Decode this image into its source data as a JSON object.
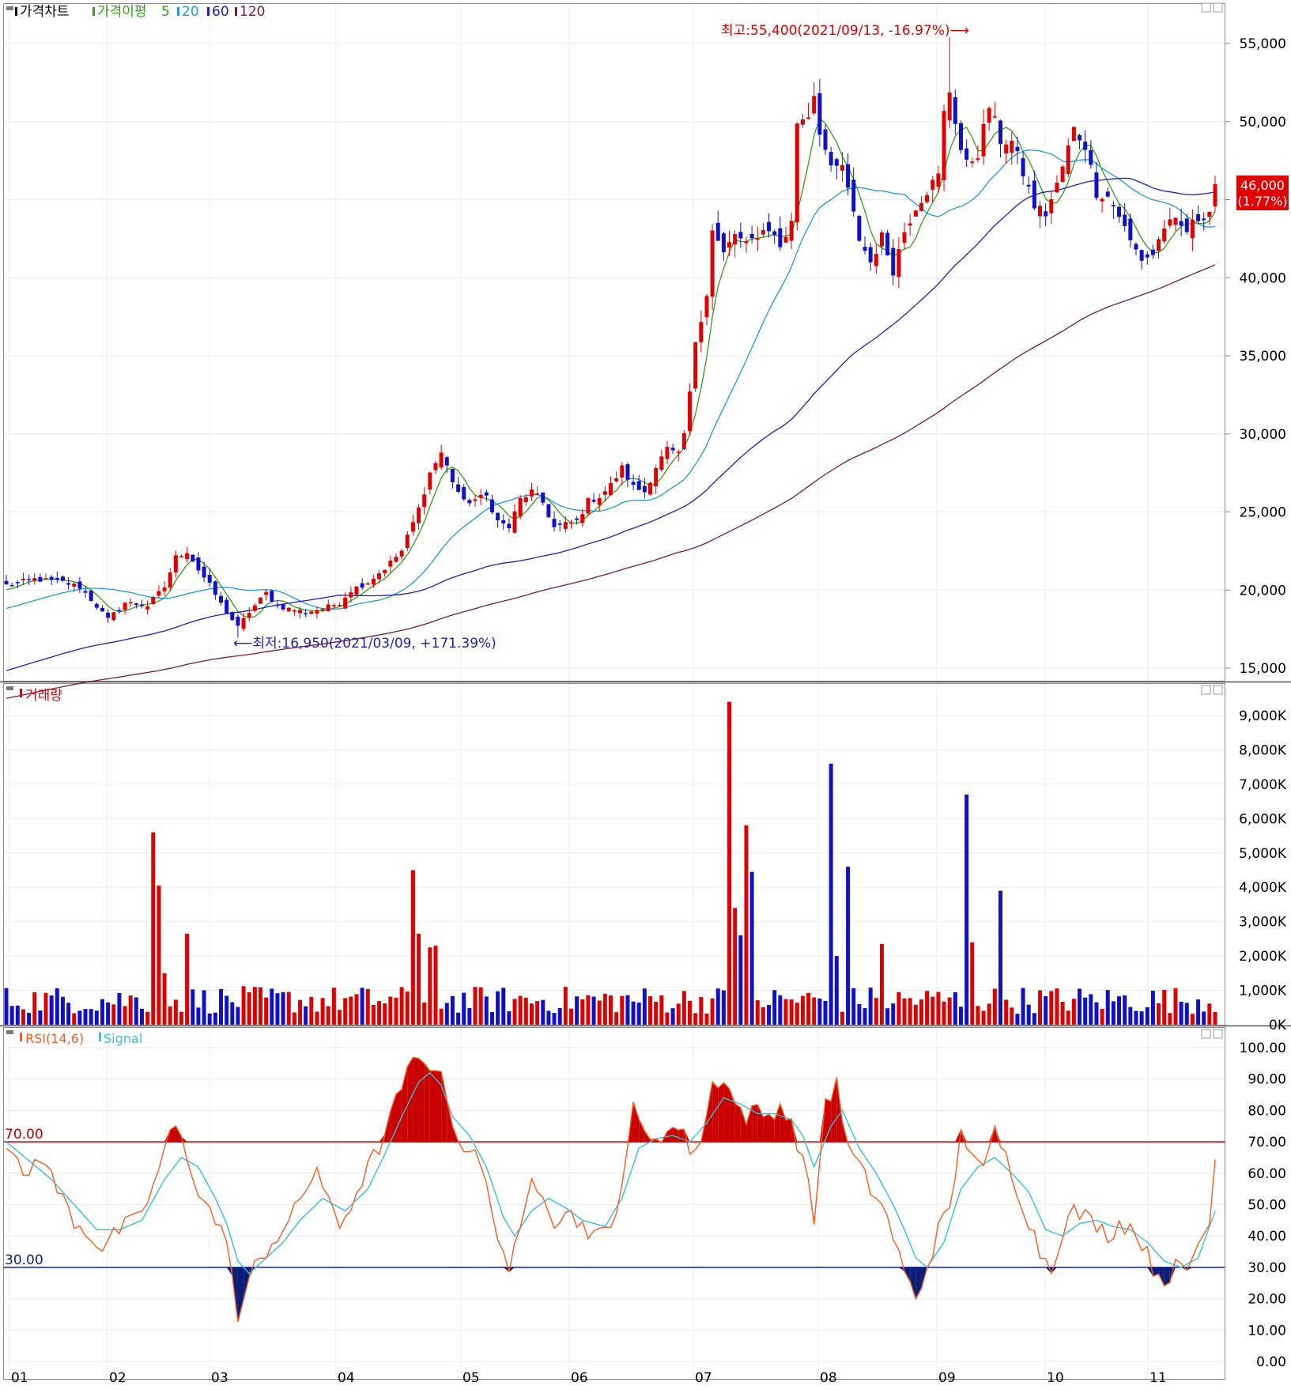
{
  "colors": {
    "up": "#e00000",
    "down": "#1010c8",
    "ma5": "#3a9a1a",
    "ma20": "#1e9ad6",
    "ma60": "#1e1ec0",
    "ma120": "#7a1a3a",
    "rsi": "#ff5a1e",
    "signal": "#36c0d8",
    "grid": "#e6e6e6",
    "frame": "#8a8a8a",
    "high_fill": "#c80000",
    "low_fill": "#0a1e78"
  },
  "price_panel": {
    "legend": {
      "title": "가격차트",
      "ma_label": "가격이평",
      "ma5": "5",
      "ma20": "20",
      "ma60": "60",
      "ma120": "120"
    },
    "high_annotation": "최고:55,400(2021/09/13, -16.97%)⟶",
    "low_annotation": "⟵최저:16,950(2021/03/09, +171.39%)",
    "last_price": "46,000",
    "last_change": "(1.77%)",
    "y_ticks": [
      "55,000",
      "50,000",
      "45,000",
      "40,000",
      "35,000",
      "30,000",
      "25,000",
      "20,000",
      "15,000"
    ]
  },
  "volume_panel": {
    "legend": "거래량",
    "y_ticks": [
      "9,000K",
      "8,000K",
      "7,000K",
      "6,000K",
      "5,000K",
      "4,000K",
      "3,000K",
      "2,000K",
      "1,000K",
      "0K"
    ]
  },
  "rsi_panel": {
    "legend_rsi": "RSI(14,6)",
    "legend_signal": "Signal",
    "upper_label": "70.00",
    "lower_label": "30.00",
    "y_ticks": [
      "100.00",
      "90.00",
      "80.00",
      "70.00",
      "60.00",
      "50.00",
      "40.00",
      "30.00",
      "20.00",
      "10.00",
      "0.00"
    ]
  },
  "x_axis": [
    "01",
    "02",
    "03",
    "04",
    "05",
    "06",
    "07",
    "08",
    "09",
    "10",
    "11"
  ],
  "chart_data": [
    {
      "type": "candlestick",
      "title": "가격차트",
      "ylim": [
        15000,
        56500
      ],
      "months": [
        "01",
        "02",
        "03",
        "04",
        "05",
        "06",
        "07",
        "08",
        "09",
        "10",
        "11"
      ],
      "close_anchors": [
        [
          0,
          20300
        ],
        [
          5,
          20700
        ],
        [
          10,
          20500
        ],
        [
          13,
          20200
        ],
        [
          15,
          19400
        ],
        [
          18,
          18100
        ],
        [
          21,
          19200
        ],
        [
          25,
          19000
        ],
        [
          28,
          20200
        ],
        [
          30,
          22100
        ],
        [
          32,
          22500
        ],
        [
          34,
          21300
        ],
        [
          36,
          20300
        ],
        [
          38,
          19100
        ],
        [
          40,
          18100
        ],
        [
          41,
          17600
        ],
        [
          43,
          18600
        ],
        [
          46,
          19800
        ],
        [
          48,
          19000
        ],
        [
          50,
          18800
        ],
        [
          53,
          18600
        ],
        [
          56,
          18800
        ],
        [
          59,
          19200
        ],
        [
          61,
          20000
        ],
        [
          64,
          20500
        ],
        [
          67,
          21400
        ],
        [
          70,
          22500
        ],
        [
          73,
          25200
        ],
        [
          75,
          27500
        ],
        [
          77,
          28800
        ],
        [
          79,
          27000
        ],
        [
          81,
          25600
        ],
        [
          83,
          25800
        ],
        [
          85,
          26000
        ],
        [
          87,
          24400
        ],
        [
          89,
          24000
        ],
        [
          91,
          25800
        ],
        [
          93,
          26300
        ],
        [
          95,
          25600
        ],
        [
          97,
          24000
        ],
        [
          99,
          24200
        ],
        [
          101,
          24400
        ],
        [
          103,
          25700
        ],
        [
          105,
          26000
        ],
        [
          107,
          26700
        ],
        [
          109,
          27800
        ],
        [
          111,
          26600
        ],
        [
          113,
          26300
        ],
        [
          115,
          27900
        ],
        [
          117,
          29000
        ],
        [
          119,
          28600
        ],
        [
          120,
          30000
        ],
        [
          121,
          32500
        ],
        [
          122,
          36000
        ],
        [
          124,
          39000
        ],
        [
          125,
          43000
        ],
        [
          127,
          41500
        ],
        [
          129,
          42800
        ],
        [
          131,
          42000
        ],
        [
          133,
          42800
        ],
        [
          135,
          43200
        ],
        [
          137,
          42000
        ],
        [
          139,
          43500
        ],
        [
          140,
          50000
        ],
        [
          142,
          50500
        ],
        [
          143,
          51800
        ],
        [
          144,
          49500
        ],
        [
          146,
          46800
        ],
        [
          148,
          47200
        ],
        [
          149,
          45500
        ],
        [
          151,
          42500
        ],
        [
          153,
          41000
        ],
        [
          155,
          42600
        ],
        [
          157,
          40500
        ],
        [
          159,
          43000
        ],
        [
          161,
          44600
        ],
        [
          163,
          45600
        ],
        [
          165,
          46500
        ],
        [
          166,
          50500
        ],
        [
          167,
          52000
        ],
        [
          169,
          48200
        ],
        [
          170,
          47200
        ],
        [
          172,
          48000
        ],
        [
          174,
          51000
        ],
        [
          176,
          48800
        ],
        [
          178,
          48700
        ],
        [
          180,
          46700
        ],
        [
          182,
          44600
        ],
        [
          184,
          44100
        ],
        [
          186,
          45900
        ],
        [
          188,
          48300
        ],
        [
          189,
          49500
        ],
        [
          191,
          48500
        ],
        [
          193,
          45500
        ],
        [
          195,
          45200
        ],
        [
          197,
          44000
        ],
        [
          199,
          42300
        ],
        [
          201,
          41200
        ],
        [
          203,
          41500
        ],
        [
          205,
          43300
        ],
        [
          207,
          43500
        ],
        [
          209,
          43000
        ],
        [
          211,
          43800
        ],
        [
          213,
          44300
        ],
        [
          214,
          46000
        ]
      ],
      "highest": {
        "value": 55400,
        "date": "2021/09/13",
        "label": "최고:55,400(2021/09/13, -16.97%)"
      },
      "lowest": {
        "value": 16950,
        "date": "2021/03/09",
        "label": "최저:16,950(2021/03/09, +171.39%)"
      },
      "last": {
        "value": 46000,
        "change": "1.77%"
      },
      "series": [
        {
          "name": "5",
          "type": "line"
        },
        {
          "name": "20",
          "type": "line"
        },
        {
          "name": "60",
          "type": "line"
        },
        {
          "name": "120",
          "type": "line"
        }
      ]
    },
    {
      "type": "bar",
      "title": "거래량",
      "unit": "K",
      "ylim": [
        0,
        9500
      ],
      "spikes": [
        [
          26,
          5600
        ],
        [
          27,
          4050
        ],
        [
          28,
          1500
        ],
        [
          32,
          2650
        ],
        [
          72,
          4500
        ],
        [
          73,
          2650
        ],
        [
          75,
          2250
        ],
        [
          76,
          2300
        ],
        [
          128,
          9400
        ],
        [
          129,
          3400
        ],
        [
          130,
          2600
        ],
        [
          131,
          5800
        ],
        [
          132,
          4450
        ],
        [
          146,
          7600
        ],
        [
          147,
          2000
        ],
        [
          149,
          4600
        ],
        [
          155,
          2350
        ],
        [
          170,
          6700
        ],
        [
          171,
          2400
        ],
        [
          176,
          3900
        ]
      ],
      "baseline_k": 900
    },
    {
      "type": "line",
      "title": "RSI(14,6)",
      "ylim": [
        0,
        100
      ],
      "rsi_anchors": [
        [
          0,
          70
        ],
        [
          3,
          58
        ],
        [
          6,
          66
        ],
        [
          9,
          55
        ],
        [
          12,
          45
        ],
        [
          15,
          40
        ],
        [
          17,
          36
        ],
        [
          20,
          42
        ],
        [
          23,
          45
        ],
        [
          26,
          55
        ],
        [
          28,
          68
        ],
        [
          30,
          75
        ],
        [
          32,
          65
        ],
        [
          34,
          55
        ],
        [
          36,
          48
        ],
        [
          38,
          42
        ],
        [
          40,
          30
        ],
        [
          41,
          12
        ],
        [
          42,
          20
        ],
        [
          44,
          30
        ],
        [
          47,
          38
        ],
        [
          50,
          44
        ],
        [
          53,
          55
        ],
        [
          55,
          62
        ],
        [
          57,
          50
        ],
        [
          59,
          43
        ],
        [
          61,
          50
        ],
        [
          63,
          58
        ],
        [
          65,
          65
        ],
        [
          67,
          72
        ],
        [
          70,
          88
        ],
        [
          72,
          95
        ],
        [
          74,
          96
        ],
        [
          76,
          94
        ],
        [
          78,
          85
        ],
        [
          80,
          70
        ],
        [
          82,
          68
        ],
        [
          84,
          62
        ],
        [
          86,
          48
        ],
        [
          88,
          35
        ],
        [
          89,
          30
        ],
        [
          91,
          40
        ],
        [
          93,
          58
        ],
        [
          95,
          55
        ],
        [
          97,
          45
        ],
        [
          99,
          48
        ],
        [
          101,
          45
        ],
        [
          103,
          42
        ],
        [
          105,
          40
        ],
        [
          107,
          42
        ],
        [
          109,
          58
        ],
        [
          111,
          80
        ],
        [
          113,
          72
        ],
        [
          115,
          72
        ],
        [
          117,
          73
        ],
        [
          119,
          75
        ],
        [
          121,
          68
        ],
        [
          123,
          70
        ],
        [
          125,
          88
        ],
        [
          127,
          91
        ],
        [
          129,
          82
        ],
        [
          131,
          78
        ],
        [
          133,
          80
        ],
        [
          135,
          78
        ],
        [
          137,
          82
        ],
        [
          139,
          75
        ],
        [
          141,
          65
        ],
        [
          143,
          45
        ],
        [
          145,
          83
        ],
        [
          147,
          88
        ],
        [
          149,
          68
        ],
        [
          151,
          62
        ],
        [
          153,
          55
        ],
        [
          155,
          50
        ],
        [
          157,
          40
        ],
        [
          159,
          28
        ],
        [
          161,
          20
        ],
        [
          163,
          30
        ],
        [
          165,
          42
        ],
        [
          167,
          48
        ],
        [
          169,
          72
        ],
        [
          171,
          68
        ],
        [
          173,
          60
        ],
        [
          175,
          73
        ],
        [
          177,
          65
        ],
        [
          179,
          55
        ],
        [
          181,
          45
        ],
        [
          183,
          35
        ],
        [
          185,
          30
        ],
        [
          187,
          42
        ],
        [
          189,
          48
        ],
        [
          191,
          46
        ],
        [
          193,
          44
        ],
        [
          195,
          40
        ],
        [
          197,
          44
        ],
        [
          199,
          43
        ],
        [
          201,
          38
        ],
        [
          203,
          30
        ],
        [
          205,
          26
        ],
        [
          207,
          30
        ],
        [
          209,
          28
        ],
        [
          211,
          38
        ],
        [
          213,
          44
        ],
        [
          214,
          64
        ]
      ],
      "signal_anchors": [
        [
          0,
          70
        ],
        [
          4,
          64
        ],
        [
          8,
          58
        ],
        [
          12,
          50
        ],
        [
          16,
          42
        ],
        [
          20,
          42
        ],
        [
          24,
          45
        ],
        [
          28,
          58
        ],
        [
          31,
          65
        ],
        [
          34,
          62
        ],
        [
          37,
          52
        ],
        [
          39,
          44
        ],
        [
          41,
          32
        ],
        [
          43,
          28
        ],
        [
          46,
          33
        ],
        [
          49,
          38
        ],
        [
          52,
          45
        ],
        [
          56,
          52
        ],
        [
          60,
          48
        ],
        [
          64,
          55
        ],
        [
          67,
          66
        ],
        [
          70,
          78
        ],
        [
          73,
          89
        ],
        [
          75,
          92
        ],
        [
          77,
          88
        ],
        [
          79,
          78
        ],
        [
          82,
          72
        ],
        [
          85,
          62
        ],
        [
          88,
          46
        ],
        [
          90,
          40
        ],
        [
          93,
          48
        ],
        [
          96,
          52
        ],
        [
          99,
          49
        ],
        [
          102,
          45
        ],
        [
          106,
          43
        ],
        [
          109,
          52
        ],
        [
          112,
          68
        ],
        [
          115,
          71
        ],
        [
          118,
          72
        ],
        [
          121,
          70
        ],
        [
          124,
          76
        ],
        [
          127,
          84
        ],
        [
          130,
          82
        ],
        [
          133,
          79
        ],
        [
          136,
          79
        ],
        [
          139,
          77
        ],
        [
          141,
          72
        ],
        [
          143,
          62
        ],
        [
          146,
          75
        ],
        [
          148,
          80
        ],
        [
          151,
          68
        ],
        [
          154,
          60
        ],
        [
          157,
          50
        ],
        [
          159,
          42
        ],
        [
          161,
          33
        ],
        [
          163,
          30
        ],
        [
          166,
          38
        ],
        [
          169,
          55
        ],
        [
          172,
          62
        ],
        [
          175,
          65
        ],
        [
          178,
          60
        ],
        [
          181,
          54
        ],
        [
          184,
          42
        ],
        [
          187,
          40
        ],
        [
          190,
          44
        ],
        [
          193,
          45
        ],
        [
          196,
          43
        ],
        [
          199,
          42
        ],
        [
          202,
          38
        ],
        [
          205,
          32
        ],
        [
          208,
          30
        ],
        [
          211,
          33
        ],
        [
          214,
          48
        ]
      ],
      "overbought": 70,
      "oversold": 30,
      "series": [
        {
          "name": "RSI(14,6)"
        },
        {
          "name": "Signal"
        }
      ]
    }
  ]
}
